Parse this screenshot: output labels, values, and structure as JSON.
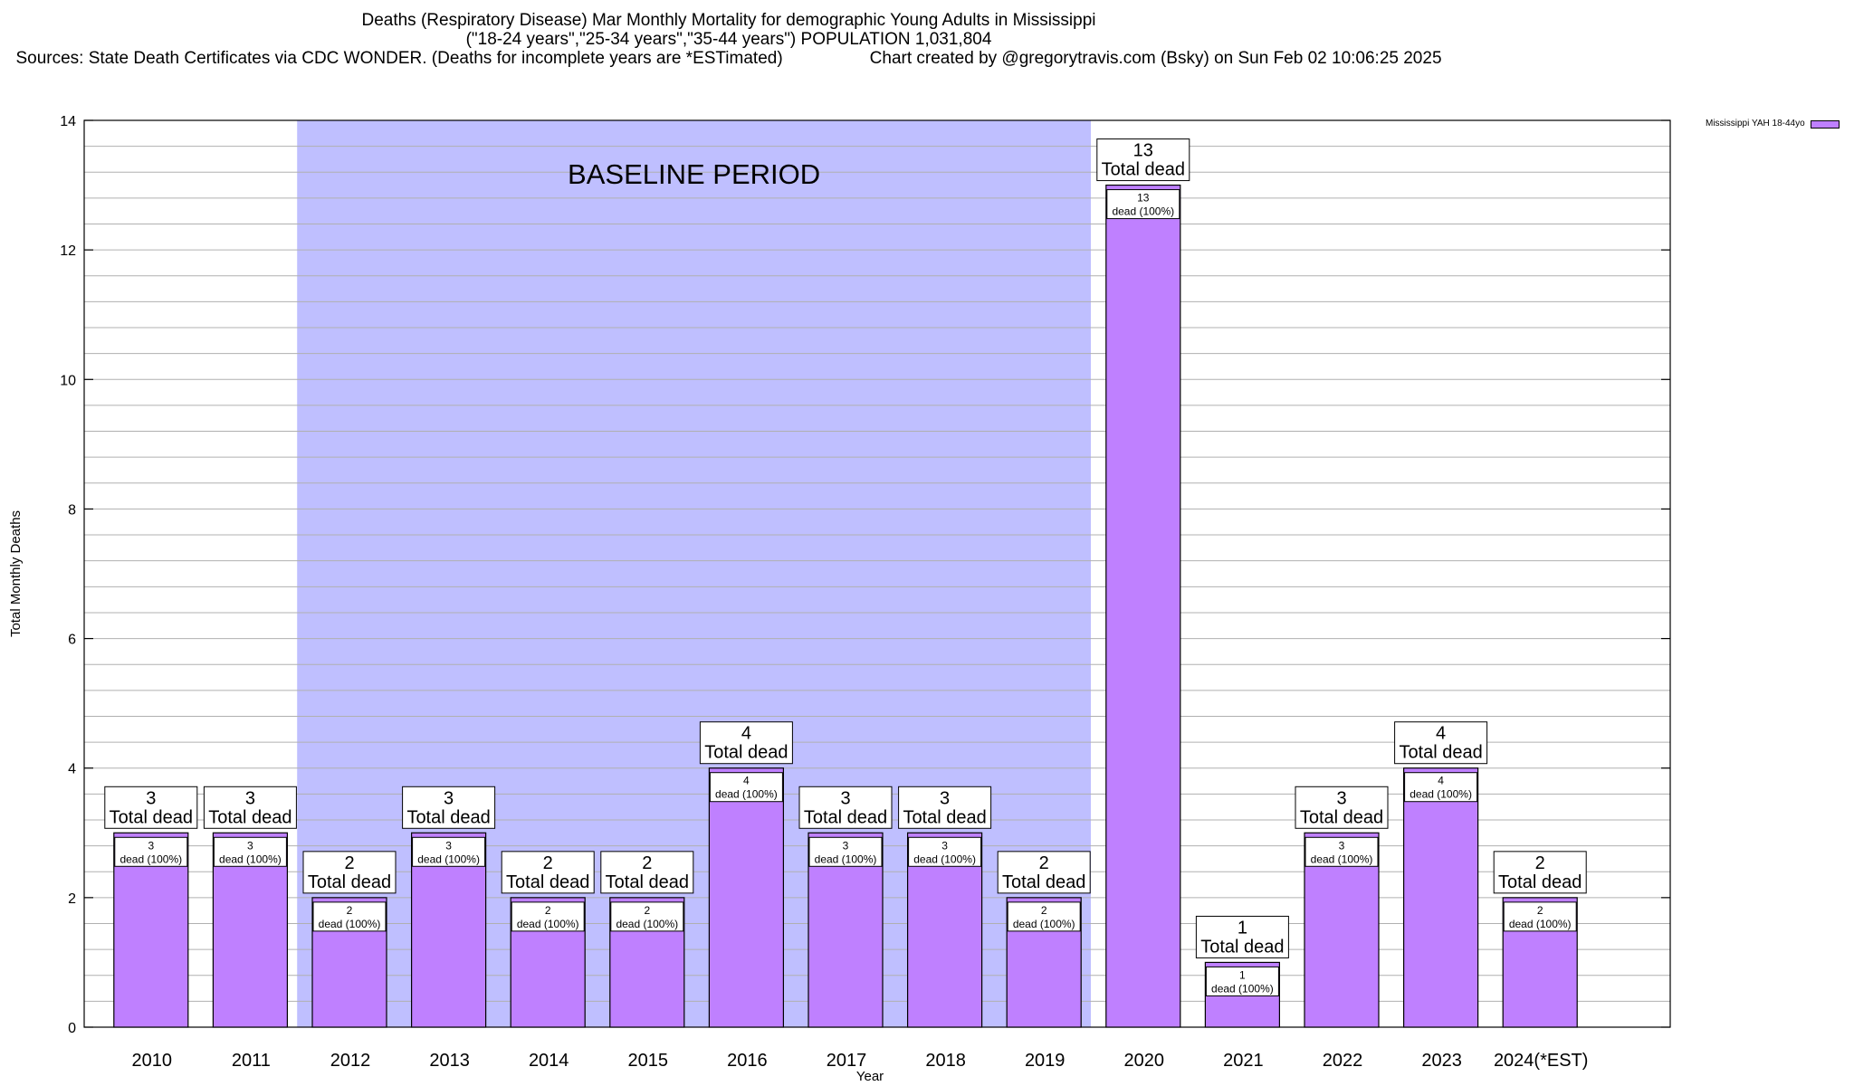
{
  "header": {
    "title": "Deaths (Respiratory Disease) Mar Monthly Mortality for demographic Young Adults in Mississippi",
    "subtitle": "(\"18-24 years\",\"25-34 years\",\"35-44 years\") POPULATION 1,031,804",
    "sources": "Sources: State Death Certificates via CDC WONDER. (Deaths for incomplete years are *ESTimated)",
    "credit": "Chart created by @gregorytravis.com (Bsky) on Sun Feb 02 10:06:25 2025"
  },
  "colors": {
    "bar": "#bf80ff",
    "baseline_band": "#bfbfff",
    "grid": "#b0b0b0"
  },
  "chart_data": {
    "type": "bar",
    "xlabel": "Year",
    "ylabel": "Total Monthly Deaths",
    "ylim": [
      0,
      14
    ],
    "yticks": [
      0,
      2,
      4,
      6,
      8,
      10,
      12,
      14
    ],
    "grid": true,
    "legend_position": "top-right",
    "categories": [
      "2010",
      "2011",
      "2012",
      "2013",
      "2014",
      "2015",
      "2016",
      "2017",
      "2018",
      "2019",
      "2020",
      "2021",
      "2022",
      "2023",
      "2024(*EST)"
    ],
    "series": [
      {
        "name": "Mississippi YAH 18-44yo",
        "values": [
          3,
          3,
          2,
          3,
          2,
          2,
          4,
          3,
          3,
          2,
          13,
          1,
          3,
          4,
          2
        ]
      }
    ],
    "bar_label_suffix": "Total dead",
    "segment_label_suffix": "dead (100%)",
    "baseline": {
      "label": "BASELINE PERIOD",
      "from": "2012",
      "to": "2019"
    }
  }
}
